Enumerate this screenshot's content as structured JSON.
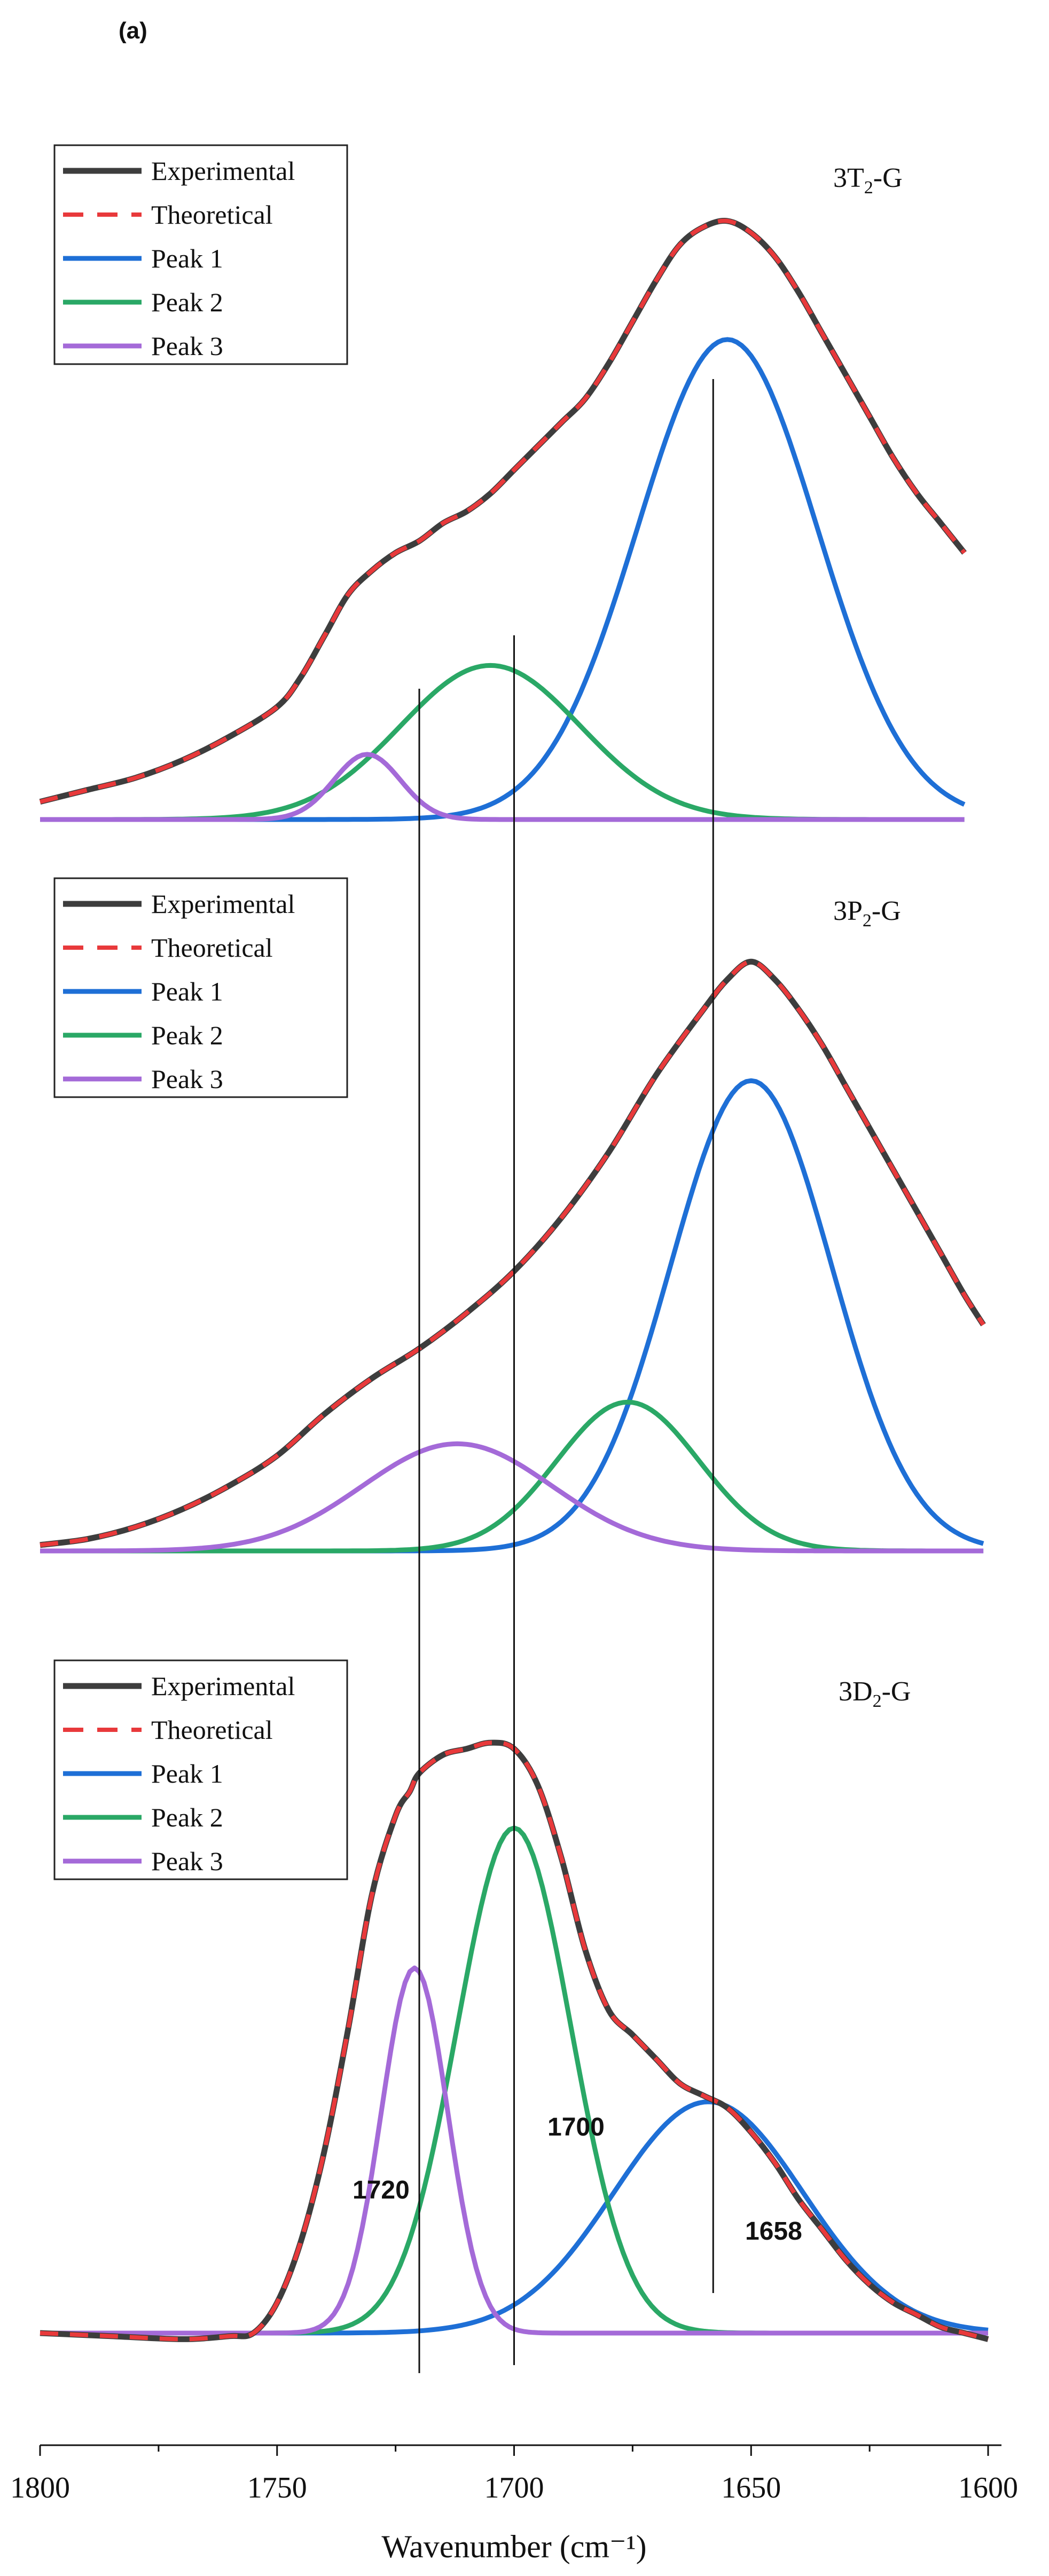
{
  "panel_label": "(a)",
  "chart_data": {
    "type": "line",
    "xlabel": "Wavenumber (cm⁻¹)",
    "xlim": [
      1800,
      1600
    ],
    "x_reversed": true,
    "x_ticks": [
      1800,
      1750,
      1700,
      1650,
      1600
    ],
    "ylabel": "",
    "ylim": [
      0,
      1
    ],
    "legend": [
      "Experimental",
      "Theoretical",
      "Peak 1",
      "Peak 2",
      "Peak 3"
    ],
    "colors": {
      "Experimental": "#3d3d3d",
      "Theoretical": "#e8393b",
      "Peak 1": "#1e6fd6",
      "Peak 2": "#2aa866",
      "Peak 3": "#a46ad8"
    },
    "reference_lines_x": [
      1720,
      1700,
      1658
    ],
    "annotations": [
      {
        "text": "1720",
        "x": 1720
      },
      {
        "text": "1700",
        "x": 1700
      },
      {
        "text": "1658",
        "x": 1658
      }
    ],
    "panels": [
      {
        "title": {
          "prefix": "3T",
          "sub": "2",
          "suffix": "-G"
        },
        "x_end": 1605,
        "peaks": [
          {
            "name": "Peak 1",
            "center": 1655,
            "amplitude": 0.81,
            "sigma": 19
          },
          {
            "name": "Peak 2",
            "center": 1705,
            "amplitude": 0.26,
            "sigma": 19
          },
          {
            "name": "Peak 3",
            "center": 1731,
            "amplitude": 0.11,
            "sigma": 7
          }
        ],
        "experimental": {
          "x": [
            1800,
            1790,
            1780,
            1770,
            1760,
            1750,
            1745,
            1740,
            1735,
            1730,
            1725,
            1720,
            1715,
            1710,
            1705,
            1700,
            1695,
            1690,
            1685,
            1680,
            1675,
            1670,
            1665,
            1660,
            1655,
            1650,
            1645,
            1640,
            1635,
            1630,
            1625,
            1620,
            1615,
            1610,
            1605
          ],
          "y": [
            0.03,
            0.05,
            0.07,
            0.1,
            0.14,
            0.19,
            0.24,
            0.31,
            0.38,
            0.42,
            0.45,
            0.47,
            0.5,
            0.52,
            0.55,
            0.59,
            0.63,
            0.67,
            0.71,
            0.77,
            0.84,
            0.91,
            0.97,
            1.0,
            1.01,
            0.99,
            0.95,
            0.89,
            0.82,
            0.75,
            0.68,
            0.61,
            0.55,
            0.5,
            0.45
          ]
        }
      },
      {
        "title": {
          "prefix": "3P",
          "sub": "2",
          "suffix": "-G"
        },
        "x_end": 1601,
        "peaks": [
          {
            "name": "Peak 1",
            "center": 1650,
            "amplitude": 0.79,
            "sigma": 17
          },
          {
            "name": "Peak 2",
            "center": 1676,
            "amplitude": 0.25,
            "sigma": 15
          },
          {
            "name": "Peak 3",
            "center": 1712,
            "amplitude": 0.18,
            "sigma": 20
          }
        ],
        "experimental": {
          "x": [
            1800,
            1790,
            1780,
            1770,
            1760,
            1750,
            1740,
            1730,
            1720,
            1710,
            1700,
            1690,
            1680,
            1670,
            1660,
            1655,
            1650,
            1645,
            1640,
            1635,
            1630,
            1625,
            1620,
            1615,
            1610,
            1605,
            1601
          ],
          "y": [
            0.01,
            0.02,
            0.04,
            0.07,
            0.11,
            0.16,
            0.23,
            0.29,
            0.34,
            0.4,
            0.47,
            0.56,
            0.67,
            0.8,
            0.91,
            0.96,
            0.99,
            0.96,
            0.91,
            0.85,
            0.78,
            0.71,
            0.64,
            0.57,
            0.5,
            0.43,
            0.38
          ]
        }
      },
      {
        "title": {
          "prefix": "3D",
          "sub": "2",
          "suffix": "-G"
        },
        "x_end": 1600,
        "peaks": [
          {
            "name": "Peak 1",
            "center": 1659,
            "amplitude": 0.38,
            "sigma": 20
          },
          {
            "name": "Peak 2",
            "center": 1700,
            "amplitude": 0.83,
            "sigma": 12
          },
          {
            "name": "Peak 3",
            "center": 1721,
            "amplitude": 0.6,
            "sigma": 7
          }
        ],
        "experimental": {
          "x": [
            1800,
            1785,
            1770,
            1760,
            1755,
            1750,
            1745,
            1740,
            1735,
            1730,
            1725,
            1722,
            1720,
            1715,
            1710,
            1705,
            1700,
            1695,
            1690,
            1685,
            1680,
            1675,
            1670,
            1665,
            1660,
            1655,
            1650,
            1645,
            1640,
            1635,
            1630,
            1625,
            1620,
            1615,
            1610,
            1605,
            1600
          ],
          "y": [
            0.0,
            -0.005,
            -0.01,
            -0.005,
            0.0,
            0.05,
            0.15,
            0.3,
            0.5,
            0.72,
            0.85,
            0.89,
            0.92,
            0.95,
            0.96,
            0.97,
            0.96,
            0.9,
            0.78,
            0.63,
            0.53,
            0.49,
            0.45,
            0.41,
            0.39,
            0.37,
            0.33,
            0.28,
            0.22,
            0.17,
            0.12,
            0.08,
            0.05,
            0.03,
            0.01,
            0.0,
            -0.01
          ]
        }
      }
    ]
  }
}
